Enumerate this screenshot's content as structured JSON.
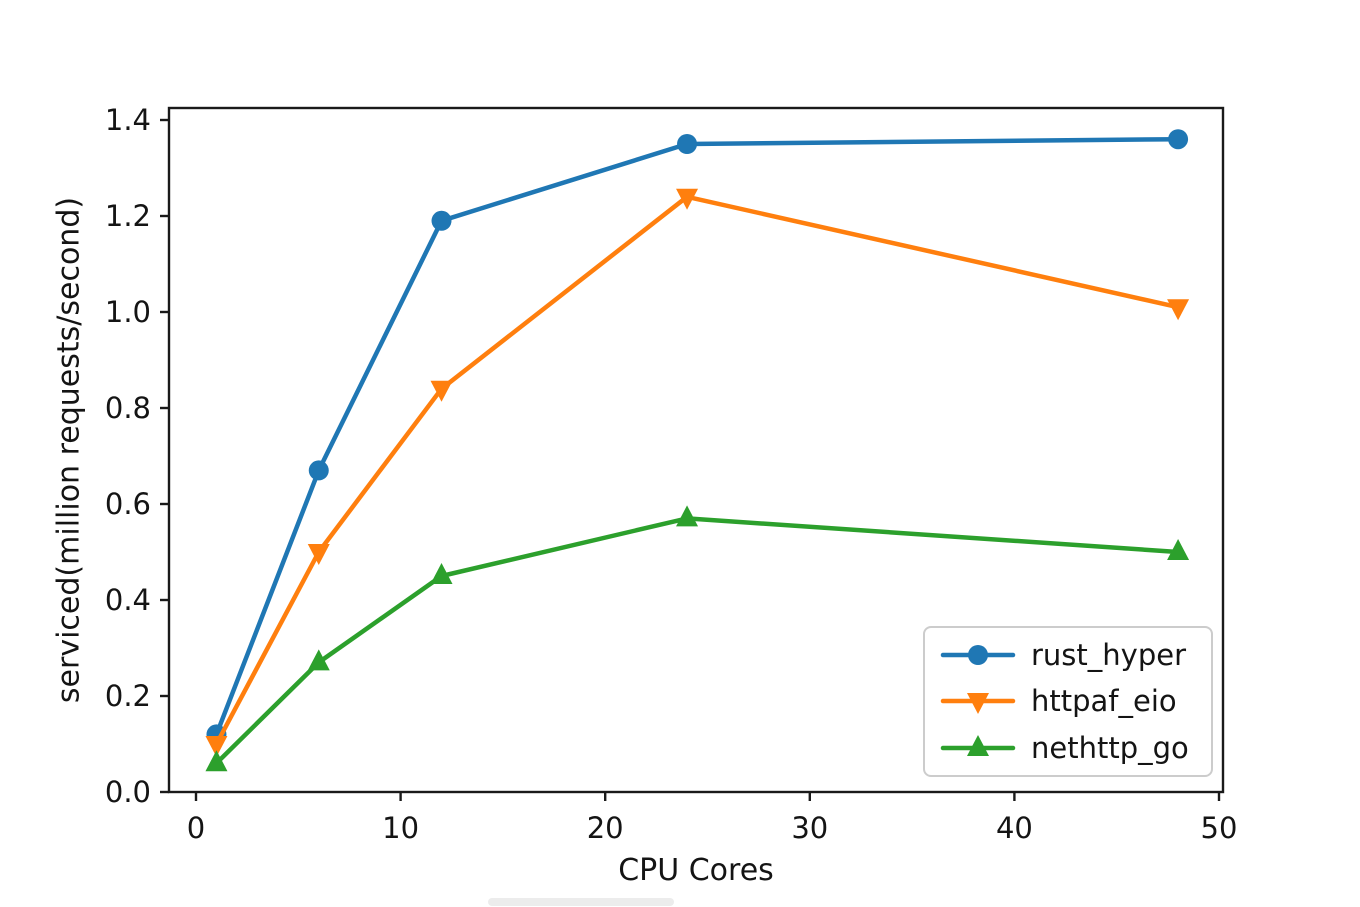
{
  "figure": {
    "background_color": "#ffffff",
    "text_color": "#141414",
    "spine_color": "#1a1a1a",
    "legend_border_color": "#cccccc"
  },
  "chart_data": {
    "type": "line",
    "title": "",
    "xlabel": "CPU Cores",
    "ylabel": "serviced(million requests/second)",
    "x": [
      1,
      6,
      12,
      24,
      48
    ],
    "series": [
      {
        "name": "rust_hyper",
        "color": "#1f77b4",
        "marker": "circle",
        "values": [
          0.12,
          0.67,
          1.19,
          1.35,
          1.36
        ]
      },
      {
        "name": "httpaf_eio",
        "color": "#ff7f0e",
        "marker": "triangle-down",
        "values": [
          0.1,
          0.5,
          0.84,
          1.24,
          1.01
        ]
      },
      {
        "name": "nethttp_go",
        "color": "#2ca02c",
        "marker": "triangle-up",
        "values": [
          0.06,
          0.27,
          0.45,
          0.57,
          0.5
        ]
      }
    ],
    "xticks": [
      0,
      10,
      20,
      30,
      40,
      50
    ],
    "yticks": [
      0.0,
      0.2,
      0.4,
      0.6,
      0.8,
      1.0,
      1.2,
      1.4
    ],
    "xlim": [
      -1.35,
      50.35
    ],
    "ylim": [
      0.0,
      1.425
    ],
    "grid": false,
    "legend": {
      "position": "lower right",
      "entries": [
        "rust_hyper",
        "httpaf_eio",
        "nethttp_go"
      ]
    }
  }
}
